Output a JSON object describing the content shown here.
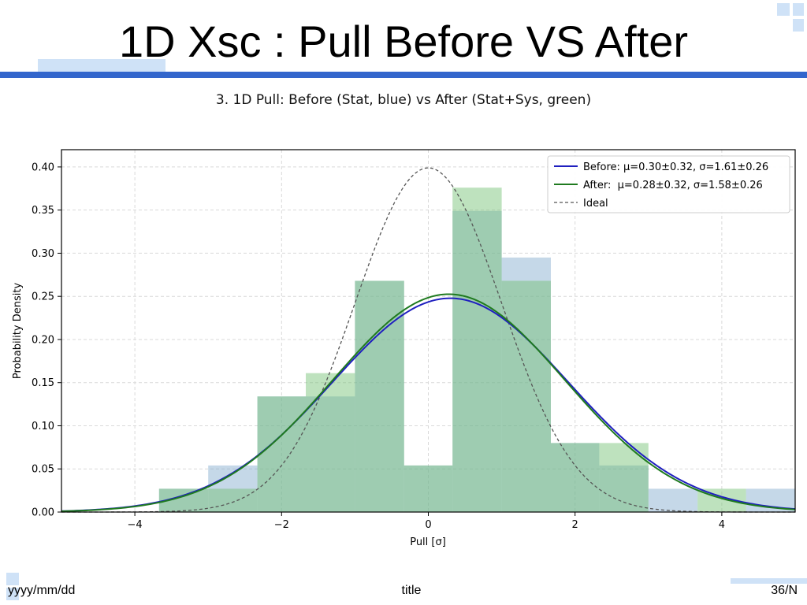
{
  "slide": {
    "title": "1D Xsc : Pull Before VS After",
    "footer_left": "yyyy/mm/dd",
    "footer_center": "title",
    "footer_right": "36/N"
  },
  "colors": {
    "rule": "#3366cc",
    "accent": "#cfe2f7",
    "before_line": "#1f1fbf",
    "after_line": "#1f7a1f",
    "before_bar": "#7ea8cc",
    "after_bar": "#6ebf6e",
    "ideal_line": "#555555"
  },
  "chart_data": {
    "type": "bar",
    "title": "3. 1D Pull: Before (Stat, blue) vs After (Stat+Sys, green)",
    "xlabel": "Pull [σ]",
    "ylabel": "Probability Density",
    "xlim": [
      -5,
      5
    ],
    "ylim": [
      0,
      0.42
    ],
    "xticks": [
      -4,
      -2,
      0,
      2,
      4
    ],
    "yticks": [
      0.0,
      0.05,
      0.1,
      0.15,
      0.2,
      0.25,
      0.3,
      0.35,
      0.4
    ],
    "grid": true,
    "legend_position": "top-right",
    "bin_edges": [
      -3.67,
      -3.0,
      -2.33,
      -1.67,
      -1.0,
      -0.33,
      0.33,
      1.0,
      1.67,
      2.33,
      3.0,
      3.67,
      4.33,
      5.0
    ],
    "series": [
      {
        "name": "Before",
        "values": [
          0.027,
          0.054,
          0.134,
          0.134,
          0.268,
          0.054,
          0.349,
          0.295,
          0.08,
          0.054,
          0.027,
          0.0,
          0.027
        ],
        "fit": {
          "mu": 0.3,
          "sigma": 1.61
        },
        "legend": "Before: μ=0.30±0.32, σ=1.61±0.26"
      },
      {
        "name": "After",
        "values": [
          0.027,
          0.027,
          0.134,
          0.161,
          0.268,
          0.054,
          0.376,
          0.268,
          0.08,
          0.08,
          0.0,
          0.027,
          0.0
        ],
        "fit": {
          "mu": 0.28,
          "sigma": 1.58
        },
        "legend": "After:  μ=0.28±0.32, σ=1.58±0.26"
      }
    ],
    "ideal": {
      "mu": 0,
      "sigma": 1,
      "legend": "Ideal"
    }
  }
}
